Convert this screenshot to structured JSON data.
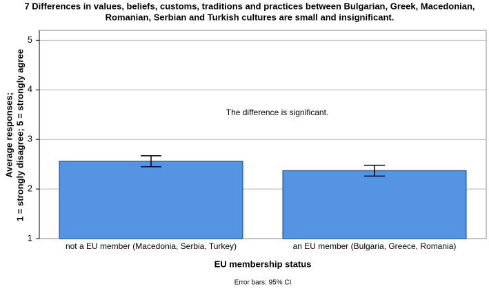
{
  "chart_data": {
    "type": "bar",
    "title": [
      "7 Differences in values, beliefs, customs, traditions and practices between Bulgarian, Greek, Macedonian,",
      "Romanian, Serbian and Turkish cultures are small and insignificant."
    ],
    "ylabel": [
      "Average responses;",
      "1 = strongly disagree; 5 = strongly agree"
    ],
    "xlabel": "EU membership status",
    "annotation": "The difference is significant.",
    "note": "Error bars: 95% CI",
    "categories": [
      "not a EU member (Macedonia, Serbia, Turkey)",
      "an EU member (Bulgaria, Greece, Romania)"
    ],
    "values": [
      2.56,
      2.37
    ],
    "errors": [
      0.11,
      0.11
    ],
    "color": "#5593e3",
    "ylim": [
      1,
      5.2
    ],
    "yticks": [
      1,
      2,
      3,
      4,
      5
    ],
    "grid": true
  }
}
